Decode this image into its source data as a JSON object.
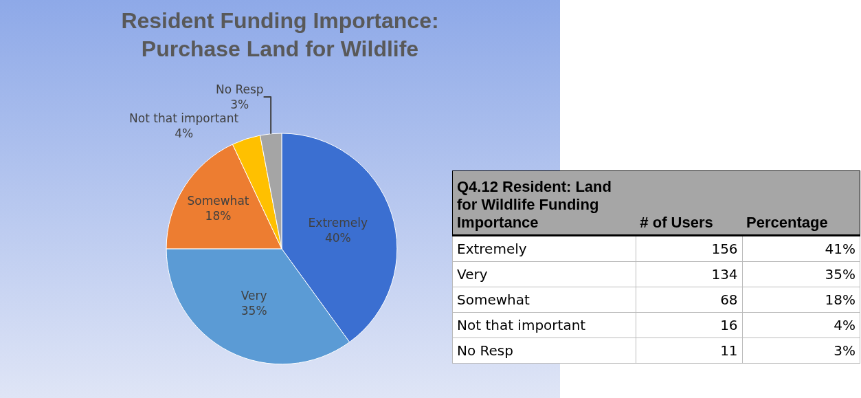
{
  "chart_data": [
    {
      "type": "pie",
      "title": "Resident Funding Importance:\nPurchase Land for Wildlife",
      "categories": [
        "Extremely",
        "Very",
        "Somewhat",
        "Not that important",
        "No Resp"
      ],
      "values": [
        40,
        35,
        18,
        4,
        3
      ],
      "value_labels": [
        "40%",
        "35%",
        "18%",
        "4%",
        "3%"
      ],
      "colors": [
        "#3b6fd1",
        "#5b9bd5",
        "#ed7d31",
        "#ffc000",
        "#a5a5a5"
      ],
      "legend": false
    },
    {
      "type": "other",
      "title": "Q4.12 Resident: Land for Wildlife Funding Importance",
      "categories": [
        "Extremely",
        "Very",
        "Somewhat",
        "Not that important",
        "No Resp"
      ],
      "data_labels": true,
      "series": [
        {
          "name": "# of Users",
          "values": [
            156,
            134,
            68,
            16,
            11
          ]
        },
        {
          "name": "Percentage",
          "values": [
            41,
            35,
            18,
            4,
            3
          ],
          "value_labels": [
            "41%",
            "35%",
            "18%",
            "4%",
            "3%"
          ]
        }
      ]
    }
  ]
}
